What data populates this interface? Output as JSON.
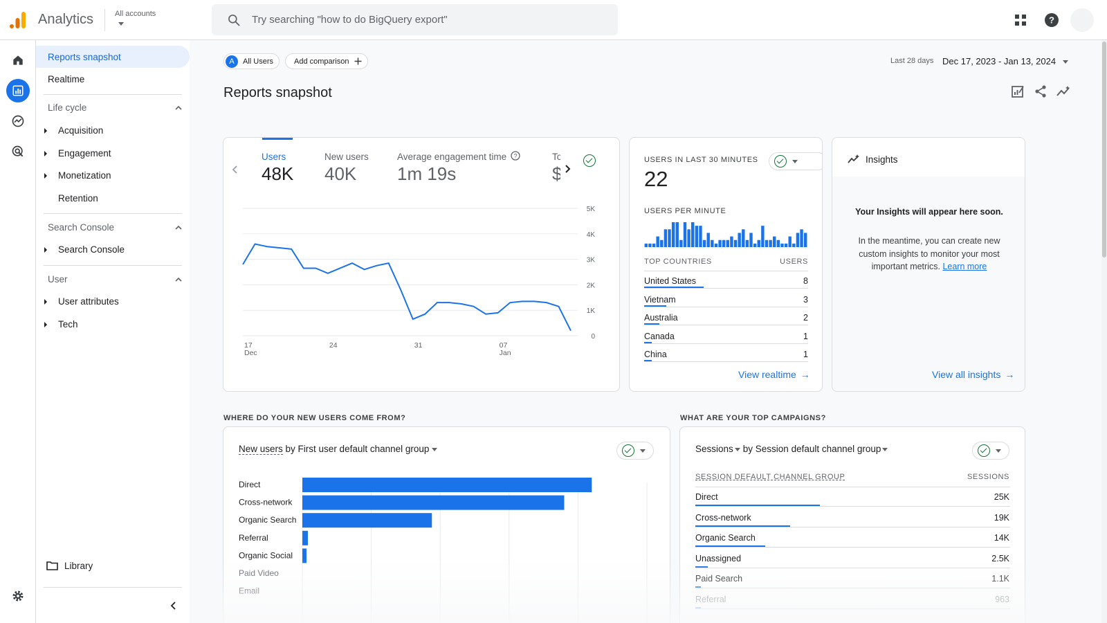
{
  "header": {
    "app_name": "Analytics",
    "account_label": "All accounts",
    "search_placeholder": "Try searching \"how to do BigQuery export\""
  },
  "nav": {
    "reports_snapshot": "Reports snapshot",
    "realtime": "Realtime",
    "lifecycle": "Life cycle",
    "acquisition": "Acquisition",
    "engagement": "Engagement",
    "monetization": "Monetization",
    "retention": "Retention",
    "search_console_section": "Search Console",
    "search_console": "Search Console",
    "user_section": "User",
    "user_attributes": "User attributes",
    "tech": "Tech",
    "library": "Library"
  },
  "filters": {
    "segment_badge": "A",
    "segment": "All Users",
    "add_comparison": "Add comparison"
  },
  "date": {
    "label": "Last 28 days",
    "range": "Dec 17, 2023 - Jan 13, 2024"
  },
  "page_title": "Reports snapshot",
  "metrics": {
    "tabs": [
      {
        "label": "Users",
        "value": "48K",
        "selected": true
      },
      {
        "label": "New users",
        "value": "40K"
      },
      {
        "label": "Average engagement time",
        "value": "1m 19s"
      },
      {
        "label": "To",
        "value": "$"
      }
    ]
  },
  "chart_data": [
    {
      "type": "line",
      "series": [
        {
          "values": [
            2800,
            3600,
            3500,
            3450,
            3400,
            2650,
            2650,
            2450,
            2650,
            2850,
            2600,
            2750,
            2850,
            1800,
            650,
            850,
            1300,
            1300,
            1250,
            1150,
            850,
            900,
            1300,
            1350,
            1350,
            1300,
            1150,
            200
          ]
        }
      ],
      "x_tick_labels": [
        {
          "day": "17",
          "month": "Dec"
        },
        {
          "day": "24",
          "month": ""
        },
        {
          "day": "31",
          "month": ""
        },
        {
          "day": "07",
          "month": "Jan"
        }
      ],
      "y_ticks": [
        "5K",
        "4K",
        "3K",
        "2K",
        "1K",
        "0"
      ],
      "ylim": [
        0,
        5000
      ],
      "grid": true,
      "color": "#1a73e8"
    },
    {
      "type": "bar",
      "title": "USERS PER MINUTE",
      "values": [
        1,
        1,
        1,
        3,
        2,
        5,
        5,
        7,
        7,
        2,
        7,
        5,
        7,
        6,
        6,
        2,
        4,
        2,
        1,
        2,
        2,
        2,
        3,
        2,
        4,
        5,
        2,
        4,
        1,
        2,
        6,
        2,
        2,
        3,
        2,
        1,
        1,
        3,
        1,
        4,
        5,
        4
      ],
      "color": "#1a73e8"
    },
    {
      "type": "bar",
      "orientation": "horizontal",
      "title": "New users by First user default channel group",
      "categories": [
        "Direct",
        "Cross-network",
        "Organic Search",
        "Referral",
        "Organic Social",
        "Paid Video",
        "Email"
      ],
      "values": [
        21000,
        19000,
        9400,
        400,
        300,
        0,
        0
      ],
      "xlim": [
        0,
        25000
      ],
      "color": "#1a73e8"
    }
  ],
  "realtime": {
    "title": "USERS IN LAST 30 MINUTES",
    "value": "22",
    "per_minute_label": "USERS PER MINUTE",
    "col_country": "TOP COUNTRIES",
    "col_users": "USERS",
    "rows": [
      {
        "name": "United States",
        "value": "8",
        "share": 1.0
      },
      {
        "name": "Vietnam",
        "value": "3",
        "share": 0.375
      },
      {
        "name": "Australia",
        "value": "2",
        "share": 0.25
      },
      {
        "name": "Canada",
        "value": "1",
        "share": 0.125
      },
      {
        "name": "China",
        "value": "1",
        "share": 0.125
      }
    ],
    "link": "View realtime"
  },
  "insights": {
    "title": "Insights",
    "headline": "Your Insights will appear here soon.",
    "body": "In the meantime, you can create new custom insights to monitor your most important metrics.",
    "learn_more": "Learn more",
    "link": "View all insights"
  },
  "acquisition": {
    "section_title": "WHERE DO YOUR NEW USERS COME FROM?",
    "metric": "New users",
    "by": "by First user default channel group"
  },
  "campaigns": {
    "section_title": "WHAT ARE YOUR TOP CAMPAIGNS?",
    "metric": "Sessions",
    "by": "by Session default channel group",
    "col_group": "SESSION DEFAULT CHANNEL GROUP",
    "col_sessions": "SESSIONS",
    "rows": [
      {
        "name": "Direct",
        "value": "25K",
        "share": 1.0
      },
      {
        "name": "Cross-network",
        "value": "19K",
        "share": 0.76
      },
      {
        "name": "Organic Search",
        "value": "14K",
        "share": 0.56
      },
      {
        "name": "Unassigned",
        "value": "2.5K",
        "share": 0.1
      },
      {
        "name": "Paid Search",
        "value": "1.1K",
        "share": 0.044
      },
      {
        "name": "Referral",
        "value": "963",
        "share": 0.038
      }
    ]
  }
}
